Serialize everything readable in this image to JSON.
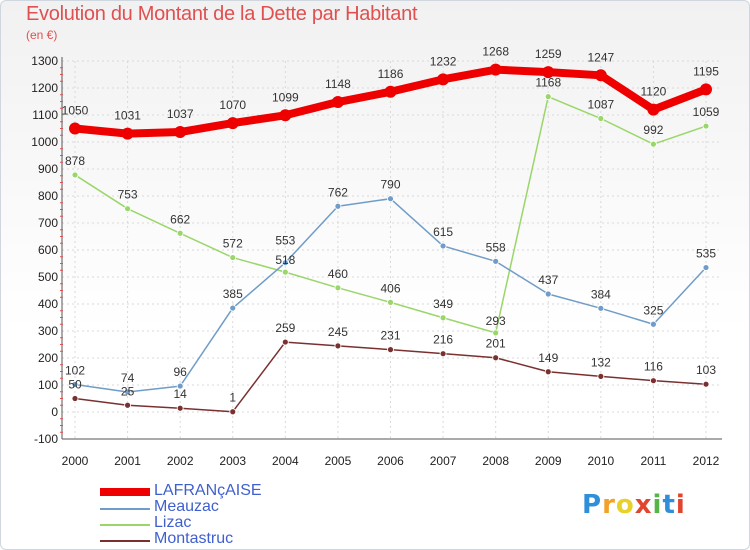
{
  "title": "Evolution du Montant de la Dette par Habitant",
  "unit_label": "(en €)",
  "logo_text": "Proxiti",
  "chart_data": {
    "type": "line",
    "title": "Evolution du Montant de la Dette par Habitant",
    "subtitle": "(en €)",
    "xlabel": "",
    "ylabel": "",
    "x": [
      "2000",
      "2001",
      "2002",
      "2003",
      "2004",
      "2005",
      "2006",
      "2007",
      "2008",
      "2009",
      "2010",
      "2011",
      "2012"
    ],
    "ylim": [
      -100,
      1300
    ],
    "y_ticks": [
      "-100",
      "0",
      "100",
      "200",
      "300",
      "400",
      "500",
      "600",
      "700",
      "800",
      "900",
      "1000",
      "1100",
      "1200",
      "1300"
    ],
    "grid": true,
    "legend_position": "bottom-left",
    "series": [
      {
        "name": "LAFRANçAISE",
        "color": "#ee0000",
        "width": 8,
        "radius": 6,
        "values": [
          1050,
          1031,
          1037,
          1070,
          1099,
          1148,
          1186,
          1232,
          1268,
          1259,
          1247,
          1120,
          1195
        ]
      },
      {
        "name": "Meauzac",
        "color": "#6f9cc8",
        "width": 1.5,
        "radius": 3,
        "values": [
          102,
          74,
          96,
          385,
          553,
          762,
          790,
          615,
          558,
          437,
          384,
          325,
          535
        ]
      },
      {
        "name": "Lizac",
        "color": "#9ad66a",
        "width": 1.5,
        "radius": 3,
        "values": [
          878,
          753,
          662,
          572,
          518,
          460,
          406,
          349,
          293,
          1168,
          1087,
          992,
          1059
        ]
      },
      {
        "name": "Montastruc",
        "color": "#7b3030",
        "width": 1.5,
        "radius": 3,
        "values": [
          50,
          25,
          14,
          1,
          259,
          245,
          231,
          216,
          201,
          149,
          132,
          116,
          103
        ]
      }
    ]
  }
}
